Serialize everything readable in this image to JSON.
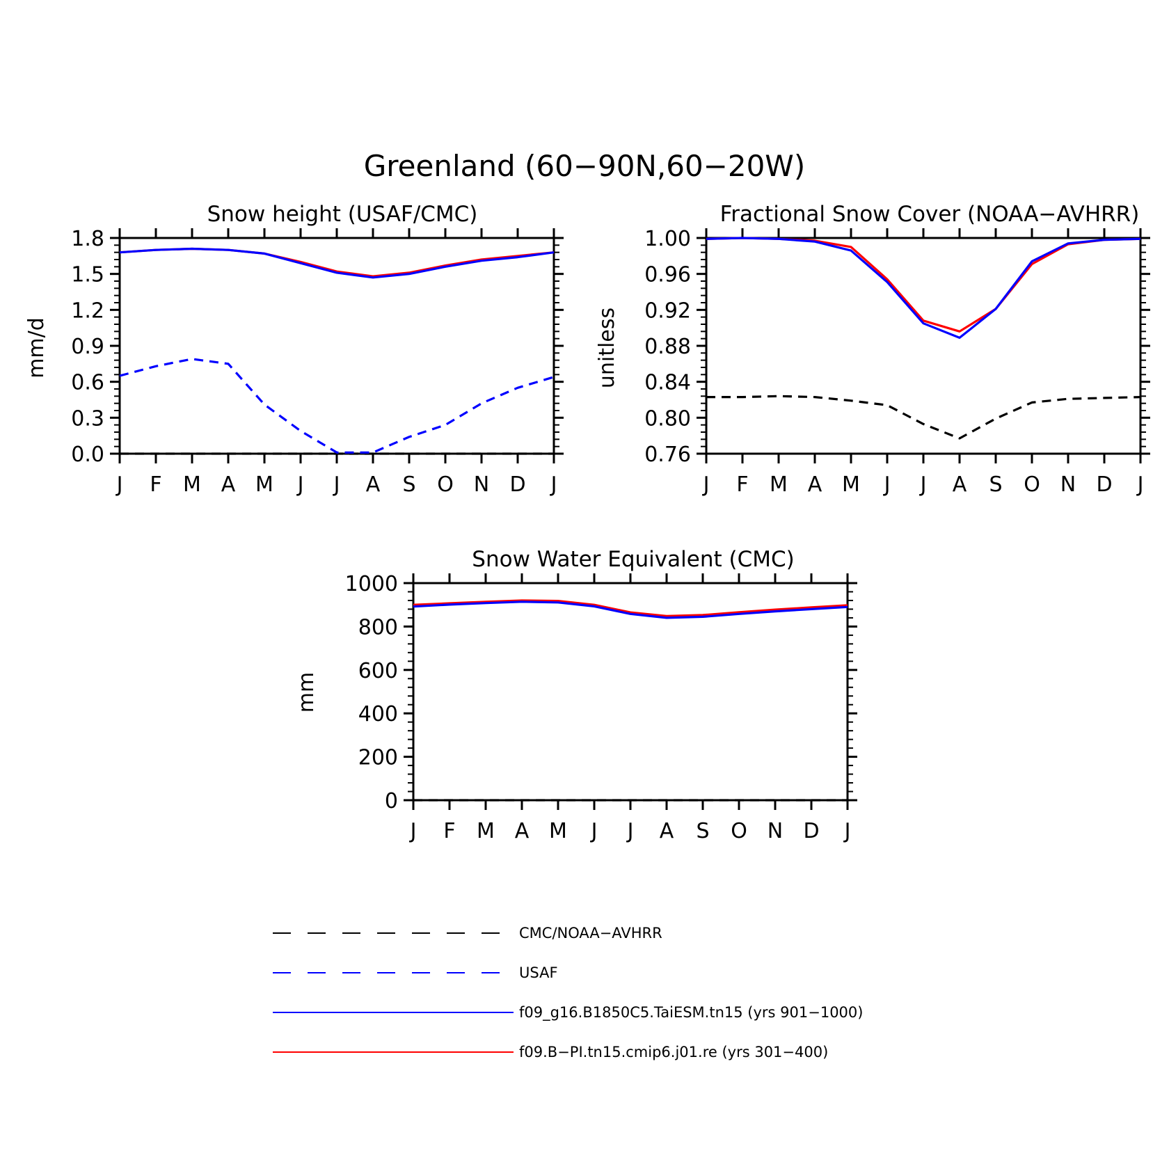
{
  "figure_title": "Greenland (60−90N,60−20W)",
  "colors": {
    "obs": "#000000",
    "usaf": "#0000ff",
    "model1": "#0000ff",
    "model2": "#ff0000"
  },
  "legend": [
    {
      "label": "CMC/NOAA−AVHRR",
      "color": "#000000",
      "style": "dashed"
    },
    {
      "label": "USAF",
      "color": "#0000ff",
      "style": "dashed"
    },
    {
      "label": "f09_g16.B1850C5.TaiESM.tn15 (yrs 901−1000)",
      "color": "#0000ff",
      "style": "solid"
    },
    {
      "label": "f09.B−PI.tn15.cmip6.j01.re (yrs 301−400)",
      "color": "#ff0000",
      "style": "solid"
    }
  ],
  "chart_data": [
    {
      "type": "line",
      "title": "Snow height (USAF/CMC)",
      "xlabel": "",
      "ylabel": "mm/d",
      "categories": [
        "J",
        "F",
        "M",
        "A",
        "M",
        "J",
        "J",
        "A",
        "S",
        "O",
        "N",
        "D",
        "J"
      ],
      "ylim": [
        0,
        1.8
      ],
      "yticks": [
        "0.0",
        "0.3",
        "0.6",
        "0.9",
        "1.2",
        "1.5",
        "1.8"
      ],
      "grid": false,
      "series": [
        {
          "name": "CMC/NOAA−AVHRR",
          "style": "dashed",
          "color": "#000000",
          "values": [
            0,
            0,
            0,
            0,
            0,
            0,
            0,
            0,
            0,
            0,
            0,
            0,
            0
          ]
        },
        {
          "name": "USAF",
          "style": "dashed",
          "color": "#0000ff",
          "values": [
            0.65,
            0.73,
            0.79,
            0.75,
            0.41,
            0.19,
            0.01,
            0.01,
            0.14,
            0.24,
            0.42,
            0.55,
            0.64
          ]
        },
        {
          "name": "f09.B−PI.tn15.cmip6.j01.re (yrs 301−400)",
          "style": "solid",
          "color": "#ff0000",
          "values": [
            1.68,
            1.7,
            1.71,
            1.7,
            1.67,
            1.6,
            1.52,
            1.48,
            1.51,
            1.57,
            1.62,
            1.65,
            1.68
          ]
        },
        {
          "name": "f09_g16.B1850C5.TaiESM.tn15 (yrs 901−1000)",
          "style": "solid",
          "color": "#0000ff",
          "values": [
            1.68,
            1.7,
            1.71,
            1.7,
            1.67,
            1.59,
            1.51,
            1.47,
            1.5,
            1.56,
            1.61,
            1.64,
            1.68
          ]
        }
      ]
    },
    {
      "type": "line",
      "title": "Fractional Snow Cover (NOAA−AVHRR)",
      "xlabel": "",
      "ylabel": "unitless",
      "categories": [
        "J",
        "F",
        "M",
        "A",
        "M",
        "J",
        "J",
        "A",
        "S",
        "O",
        "N",
        "D",
        "J"
      ],
      "ylim": [
        0.76,
        1.0
      ],
      "yticks": [
        "0.76",
        "0.80",
        "0.84",
        "0.88",
        "0.92",
        "0.96",
        "1.00"
      ],
      "grid": false,
      "series": [
        {
          "name": "CMC/NOAA−AVHRR",
          "style": "dashed",
          "color": "#000000",
          "values": [
            0.823,
            0.823,
            0.824,
            0.823,
            0.819,
            0.814,
            0.793,
            0.777,
            0.799,
            0.817,
            0.821,
            0.822,
            0.823
          ]
        },
        {
          "name": "f09.B−PI.tn15.cmip6.j01.re (yrs 301−400)",
          "style": "solid",
          "color": "#ff0000",
          "values": [
            0.999,
            1.0,
            0.999,
            0.997,
            0.99,
            0.954,
            0.908,
            0.896,
            0.921,
            0.971,
            0.993,
            0.998,
            0.999
          ]
        },
        {
          "name": "f09_g16.B1850C5.TaiESM.tn15 (yrs 901−1000)",
          "style": "solid",
          "color": "#0000ff",
          "values": [
            0.999,
            1.0,
            0.999,
            0.996,
            0.986,
            0.951,
            0.905,
            0.889,
            0.921,
            0.974,
            0.994,
            0.998,
            0.999
          ]
        }
      ]
    },
    {
      "type": "line",
      "title": "Snow Water Equivalent (CMC)",
      "xlabel": "",
      "ylabel": "mm",
      "categories": [
        "J",
        "F",
        "M",
        "A",
        "M",
        "J",
        "J",
        "A",
        "S",
        "O",
        "N",
        "D",
        "J"
      ],
      "ylim": [
        0,
        1000
      ],
      "yticks": [
        "0",
        "200",
        "400",
        "600",
        "800",
        "1000"
      ],
      "grid": false,
      "series": [
        {
          "name": "CMC/NOAA−AVHRR",
          "style": "dashed",
          "color": "#000000",
          "values": [
            0,
            0,
            0,
            0,
            0,
            0,
            0,
            0,
            0,
            0,
            0,
            0,
            0
          ]
        },
        {
          "name": "f09.B−PI.tn15.cmip6.j01.re (yrs 301−400)",
          "style": "solid",
          "color": "#ff0000",
          "values": [
            900,
            907,
            914,
            920,
            918,
            900,
            865,
            848,
            853,
            866,
            878,
            888,
            898
          ]
        },
        {
          "name": "f09_g16.B1850C5.TaiESM.tn15 (yrs 901−1000)",
          "style": "solid",
          "color": "#0000ff",
          "values": [
            892,
            901,
            908,
            914,
            911,
            893,
            858,
            840,
            845,
            858,
            870,
            880,
            890
          ]
        }
      ]
    }
  ]
}
